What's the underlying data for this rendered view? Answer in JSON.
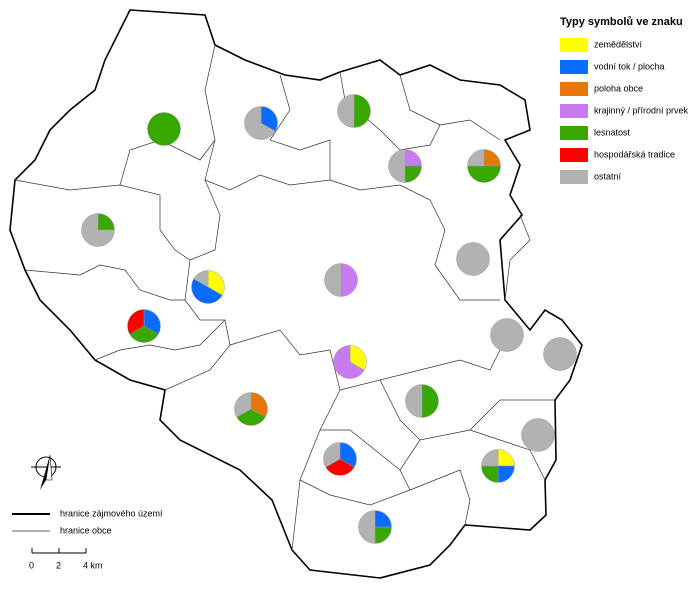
{
  "legend": {
    "title": "Typy symbolů ve znaku",
    "items": [
      {
        "label": "zemědělství",
        "color": "#ffff00"
      },
      {
        "label": "vodní tok / plocha",
        "color": "#0a6cff"
      },
      {
        "label": "poloha obce",
        "color": "#e6780a"
      },
      {
        "label": "krajinný / přírodní prvek",
        "color": "#c87af0"
      },
      {
        "label": "lesnatost",
        "color": "#38a800"
      },
      {
        "label": "hospodářská tradice",
        "color": "#ff0000"
      },
      {
        "label": "ostatní",
        "color": "#b2b2b2"
      }
    ]
  },
  "pies": [
    [
      0,
      0,
      0,
      0,
      1,
      0,
      0
    ],
    [
      0,
      1,
      0,
      0,
      0,
      0,
      2
    ],
    [
      0,
      0,
      0,
      0,
      1,
      0,
      1
    ],
    [
      0,
      0,
      0,
      1,
      1,
      0,
      2
    ],
    [
      0,
      0,
      1,
      0,
      2,
      0,
      1
    ],
    [
      0,
      0,
      0,
      0,
      1,
      0,
      3
    ],
    [
      0,
      0,
      0,
      0,
      0,
      0,
      1
    ],
    [
      0,
      0,
      0,
      1,
      0,
      0,
      1
    ],
    [
      2,
      3,
      0,
      0,
      0,
      0,
      1
    ],
    [
      0,
      1,
      0,
      0,
      1,
      1,
      0
    ],
    [
      0,
      0,
      0,
      0,
      0,
      0,
      1
    ],
    [
      0,
      0,
      0,
      0,
      0,
      0,
      1
    ],
    [
      1,
      0,
      0,
      2,
      0,
      0,
      0
    ],
    [
      0,
      0,
      1,
      0,
      1,
      0,
      1
    ],
    [
      0,
      0,
      0,
      0,
      1,
      0,
      1
    ],
    [
      0,
      0,
      0,
      0,
      0,
      0,
      1
    ],
    [
      0,
      1,
      0,
      0,
      0,
      1,
      1
    ],
    [
      1,
      1,
      0,
      0,
      1,
      0,
      1
    ],
    [
      0,
      1,
      0,
      0,
      1,
      0,
      2
    ]
  ],
  "line_legend": {
    "study_area": "hranice zájmového území",
    "municipality": "hranice obce"
  },
  "scale": {
    "labels": [
      "0",
      "2",
      "4 km"
    ]
  }
}
